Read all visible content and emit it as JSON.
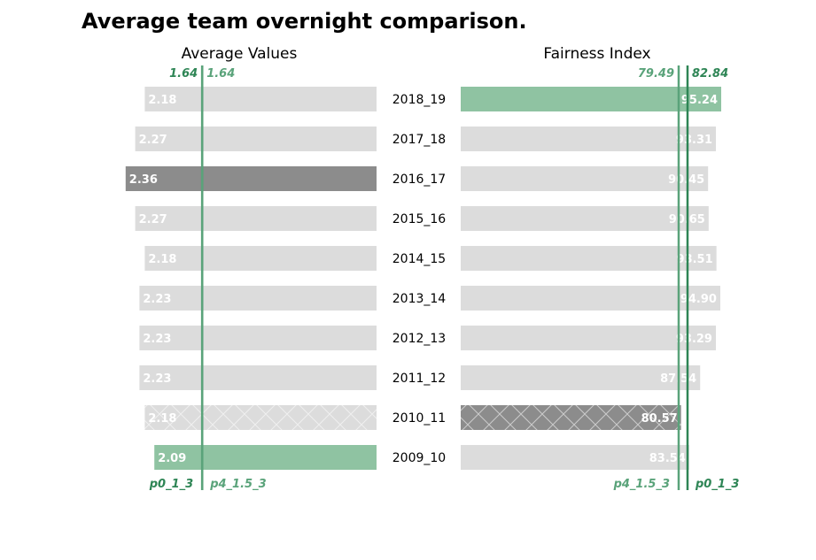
{
  "title": "Average team overnight comparison.",
  "colors": {
    "default_bar": "#dcdcdc",
    "highlight_max": "#8c8c8c",
    "highlight_green": "#8fc3a2",
    "ref_dark": "#2e8555",
    "ref_light": "#5aa37a",
    "bar_text": "#ffffff",
    "hatch": "#ffffff"
  },
  "chart_data": [
    {
      "type": "bar",
      "orientation": "horizontal",
      "title": "Average Values",
      "direction": "right-to-left",
      "categories": [
        "2018_19",
        "2017_18",
        "2016_17",
        "2015_16",
        "2014_15",
        "2013_14",
        "2012_13",
        "2011_12",
        "2010_11",
        "2009_10"
      ],
      "values": [
        2.18,
        2.27,
        2.36,
        2.27,
        2.18,
        2.23,
        2.23,
        2.23,
        2.18,
        2.09
      ],
      "value_labels": [
        "2.18",
        "2.27",
        "2.36",
        "2.27",
        "2.18",
        "2.23",
        "2.23",
        "2.23",
        "2.18",
        "2.09"
      ],
      "xlim": [
        0,
        2.45
      ],
      "highlights": {
        "2016_17": "highlight_max",
        "2010_11": "default_bar",
        "2009_10": "highlight_green"
      },
      "hatched": [
        "2010_11"
      ],
      "reference_lines": [
        {
          "name": "p0_1_3",
          "value": 1.64,
          "value_label": "1.64",
          "color": "ref_dark"
        },
        {
          "name": "p4_1.5_3",
          "value": 1.64,
          "value_label": "1.64",
          "color": "ref_light"
        }
      ]
    },
    {
      "type": "bar",
      "orientation": "horizontal",
      "title": "Fairness Index",
      "direction": "left-to-right",
      "categories": [
        "2018_19",
        "2017_18",
        "2016_17",
        "2015_16",
        "2014_15",
        "2013_14",
        "2012_13",
        "2011_12",
        "2010_11",
        "2009_10"
      ],
      "values": [
        95.24,
        93.31,
        90.45,
        90.65,
        93.51,
        94.9,
        93.29,
        87.54,
        80.57,
        83.54
      ],
      "value_labels": [
        "95.24",
        "93.31",
        "90.45",
        "90.65",
        "93.51",
        "94.90",
        "93.29",
        "87.54",
        "80.57",
        "83.54"
      ],
      "xlim": [
        0,
        100
      ],
      "highlights": {
        "2018_19": "highlight_green",
        "2010_11": "highlight_max"
      },
      "hatched": [
        "2010_11"
      ],
      "reference_lines": [
        {
          "name": "p4_1.5_3",
          "value": 79.49,
          "value_label": "79.49",
          "color": "ref_light"
        },
        {
          "name": "p0_1_3",
          "value": 82.84,
          "value_label": "82.84",
          "color": "ref_dark"
        }
      ]
    }
  ]
}
